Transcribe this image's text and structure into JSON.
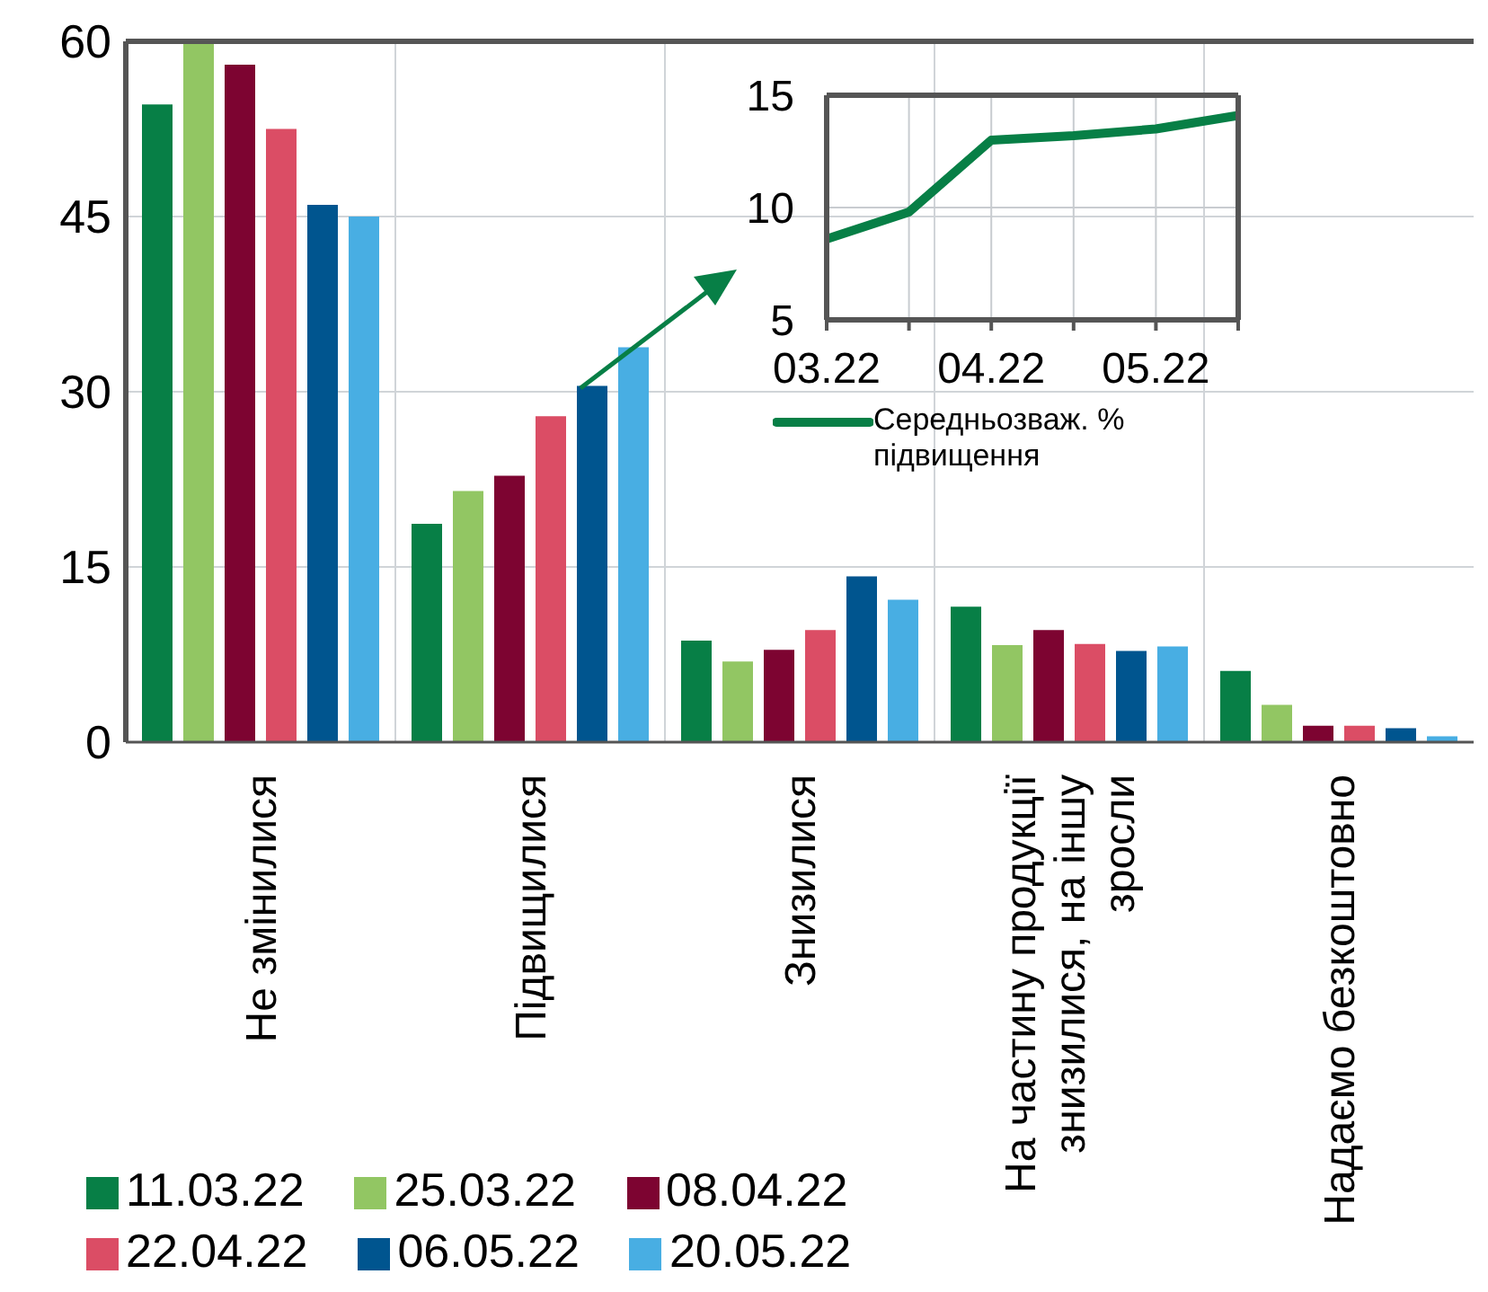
{
  "chart_data": [
    {
      "type": "bar",
      "categories": [
        "Не змінилися",
        "Підвищилися",
        "Знизилися",
        "На частину продукції знизилися, на іншу зросли",
        "Надаємо безкоштовно"
      ],
      "series": [
        {
          "name": "11.03.22",
          "color": "#077f46",
          "values": [
            54.6,
            18.7,
            8.7,
            11.6,
            6.1
          ]
        },
        {
          "name": "25.03.22",
          "color": "#92c663",
          "values": [
            60,
            21.5,
            6.9,
            8.3,
            3.2
          ]
        },
        {
          "name": "08.04.22",
          "color": "#7d0431",
          "values": [
            58,
            22.8,
            7.9,
            9.6,
            1.4
          ]
        },
        {
          "name": "22.04.22",
          "color": "#db4d65",
          "values": [
            52.5,
            27.9,
            9.6,
            8.4,
            1.4
          ]
        },
        {
          "name": "06.05.22",
          "color": "#00558f",
          "values": [
            46,
            30.5,
            14.2,
            7.8,
            1.2
          ]
        },
        {
          "name": "20.05.22",
          "color": "#48aee3",
          "values": [
            45,
            33.8,
            12.2,
            8.2,
            0.5
          ]
        }
      ],
      "ylim": [
        0,
        60
      ],
      "yticks": [
        0,
        15,
        30,
        45,
        60
      ],
      "grid": true,
      "legend": "bottom"
    },
    {
      "type": "line",
      "categories": [
        "03.22",
        null,
        "04.22",
        null,
        "05.22",
        null
      ],
      "series": [
        {
          "name": "Середньозваж. % підвищення",
          "color": "#077f46",
          "values": [
            8.6,
            9.8,
            13,
            13.2,
            13.5,
            14.1
          ]
        }
      ],
      "ylim": [
        5,
        15
      ],
      "yticks": [
        5,
        10,
        15
      ],
      "grid": true,
      "legend": "bottom"
    }
  ]
}
